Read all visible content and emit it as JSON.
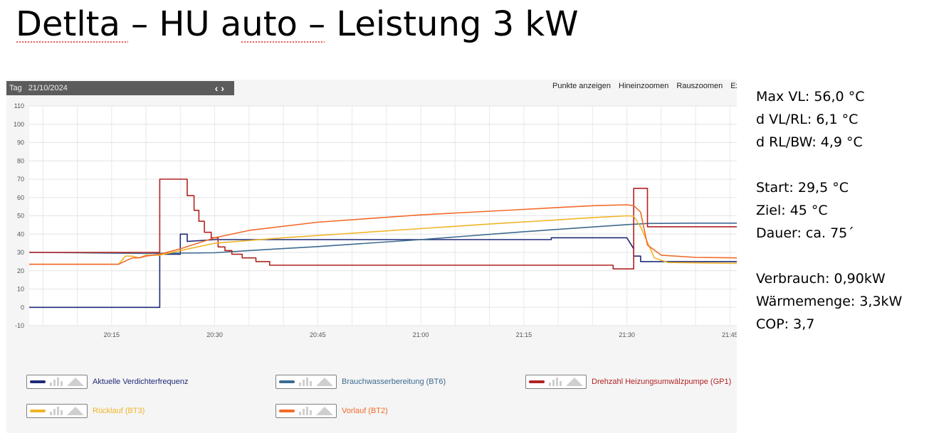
{
  "slide": {
    "title": "Detlta – HU auto – Leistung 3 kW"
  },
  "toolbar": {
    "date_label": "Tag",
    "date": "21/10/2024",
    "nav_prev": "‹",
    "nav_next": "›",
    "show_points": "Punkte anzeigen",
    "zoom_in": "Hineinzoomen",
    "zoom_out": "Rauszoomen",
    "export_truncated": "Ex"
  },
  "chart_data": {
    "type": "line",
    "title": "",
    "xlabel": "",
    "ylabel": "",
    "xlim": [
      "20:03",
      "21:46"
    ],
    "ylim": [
      -10,
      110
    ],
    "y_ticks": [
      -10,
      0,
      10,
      20,
      30,
      40,
      50,
      60,
      70,
      80,
      90,
      100,
      110
    ],
    "x_ticks": [
      "20:15",
      "20:30",
      "20:45",
      "21:00",
      "21:15",
      "21:30",
      "21:45"
    ],
    "grid": true,
    "legend_position": "bottom",
    "series": [
      {
        "name": "Aktuelle Verdichterfrequenz",
        "color": "#1f2a78",
        "x": [
          "20:03",
          "20:22",
          "20:22",
          "20:25",
          "20:25",
          "20:26",
          "20:26",
          "20:30",
          "20:30",
          "20:45",
          "21:00",
          "21:10",
          "21:19",
          "21:19",
          "21:30",
          "21:30",
          "21:31",
          "21:31",
          "21:32",
          "21:32",
          "21:46"
        ],
        "y": [
          0,
          0,
          29,
          29,
          40,
          40,
          36,
          37,
          37,
          37,
          37,
          37,
          37,
          38,
          38,
          38,
          32,
          28,
          28,
          25,
          25
        ]
      },
      {
        "name": "Brauchwasserbereitung (BT6)",
        "color": "#3d6a8f",
        "x": [
          "20:03",
          "20:10",
          "20:20",
          "20:30",
          "20:35",
          "20:45",
          "21:00",
          "21:15",
          "21:30",
          "21:33",
          "21:40",
          "21:46"
        ],
        "y": [
          30,
          29.8,
          29.4,
          29.8,
          31,
          33.2,
          37,
          41.3,
          45.2,
          45.8,
          46,
          46
        ]
      },
      {
        "name": "Drehzahl Heizungsumwälzpumpe (GP1)",
        "color": "#b22222",
        "x": [
          "20:03",
          "20:22",
          "20:22",
          "20:26",
          "20:26",
          "20:27",
          "20:27",
          "20:27.7",
          "20:27.7",
          "20:28.5",
          "20:28.5",
          "20:29.5",
          "20:29.5",
          "20:30.5",
          "20:30.5",
          "20:31.5",
          "20:31.5",
          "20:32.5",
          "20:32.5",
          "20:34",
          "20:34",
          "20:36",
          "20:36",
          "20:38",
          "20:38",
          "20:40",
          "20:40",
          "21:28",
          "21:28",
          "21:31",
          "21:31",
          "21:33",
          "21:33",
          "21:46"
        ],
        "y": [
          30,
          30,
          70,
          70,
          61,
          61,
          53,
          53,
          47,
          47,
          41,
          41,
          38,
          38,
          33,
          33,
          31,
          31,
          29,
          29,
          27,
          27,
          25,
          25,
          23,
          23,
          23,
          23,
          21,
          21,
          65,
          65,
          44,
          44
        ]
      },
      {
        "name": "Rücklauf (BT3)",
        "color": "#f0b428",
        "x": [
          "20:03",
          "20:16",
          "20:17",
          "20:18",
          "20:19",
          "20:20",
          "20:22",
          "20:25",
          "20:30",
          "20:40",
          "20:50",
          "21:00",
          "21:10",
          "21:20",
          "21:25",
          "21:30",
          "21:31",
          "21:32",
          "21:34",
          "21:36",
          "21:46"
        ],
        "y": [
          23.5,
          23.5,
          28,
          28,
          27,
          28.5,
          28.5,
          31,
          35,
          38,
          40.5,
          43,
          45.5,
          47.8,
          49,
          50,
          49.8,
          44,
          27,
          24.5,
          24
        ]
      },
      {
        "name": "Vorlauf (BT2)",
        "color": "#f26a2a",
        "x": [
          "20:03",
          "20:16",
          "20:18",
          "20:19",
          "20:20",
          "20:22",
          "20:25",
          "20:30",
          "20:35",
          "20:45",
          "21:00",
          "21:15",
          "21:25",
          "21:30",
          "21:31",
          "21:32",
          "21:33",
          "21:35",
          "21:40",
          "21:46"
        ],
        "y": [
          23.5,
          23.5,
          27,
          27,
          28,
          29,
          32,
          38,
          42,
          46.5,
          50.5,
          53.5,
          55.5,
          56,
          55.5,
          52,
          34,
          28.5,
          27.3,
          27
        ]
      }
    ]
  },
  "info": {
    "max_vl": "Max VL: 56,0 °C",
    "d_vl_rl": "d VL/RL: 6,1 °C",
    "d_rl_bw": "d RL/BW: 4,9 °C",
    "start": "Start: 29,5 °C",
    "ziel": "Ziel: 45 °C",
    "dauer": "Dauer: ca. 75´",
    "verbrauch": "Verbrauch: 0,90kW",
    "waermemenge": "Wärmemenge: 3,3kW",
    "cop": "COP: 3,7"
  }
}
